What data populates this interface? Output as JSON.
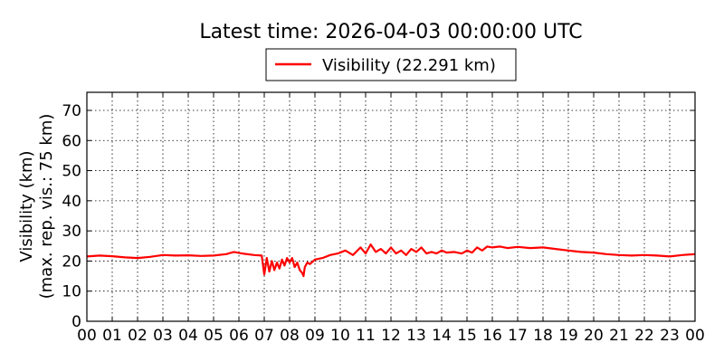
{
  "chart_data": {
    "type": "line",
    "title": "Latest time: 2026-04-03 00:00:00 UTC",
    "ylabel_lines": [
      "Visibility (km)",
      "(max. rep. vis.: 75 km)"
    ],
    "xlabel": "",
    "xlim": [
      0,
      24
    ],
    "ylim": [
      0,
      76
    ],
    "x_tick_labels": [
      "00",
      "01",
      "02",
      "03",
      "04",
      "05",
      "06",
      "07",
      "08",
      "09",
      "10",
      "11",
      "12",
      "13",
      "14",
      "15",
      "16",
      "17",
      "18",
      "19",
      "20",
      "21",
      "22",
      "23",
      "00"
    ],
    "y_ticks": [
      0,
      10,
      20,
      30,
      40,
      50,
      60,
      70
    ],
    "grid": true,
    "legend_position": "top-center",
    "series": [
      {
        "name": "Visibility (22.291 km)",
        "color": "#ff0000",
        "x": [
          0,
          0.5,
          1.0,
          1.5,
          2.0,
          2.5,
          3.0,
          3.5,
          4.0,
          4.5,
          5.0,
          5.5,
          5.8,
          6.2,
          6.6,
          6.9,
          7.0,
          7.1,
          7.2,
          7.3,
          7.4,
          7.5,
          7.6,
          7.7,
          7.8,
          7.9,
          8.0,
          8.1,
          8.2,
          8.3,
          8.4,
          8.5,
          8.55,
          8.6,
          8.7,
          8.8,
          9.0,
          9.3,
          9.6,
          9.9,
          10.2,
          10.5,
          10.8,
          11.0,
          11.2,
          11.4,
          11.6,
          11.8,
          12.0,
          12.2,
          12.4,
          12.6,
          12.8,
          13.0,
          13.2,
          13.4,
          13.6,
          13.8,
          14.0,
          14.2,
          14.5,
          14.8,
          15.0,
          15.2,
          15.4,
          15.6,
          15.8,
          16.0,
          16.3,
          16.6,
          17.0,
          17.5,
          18.0,
          18.5,
          19.0,
          19.5,
          20.0,
          20.5,
          21.0,
          21.5,
          22.0,
          22.5,
          23.0,
          23.5,
          24.0
        ],
        "values": [
          21.5,
          21.8,
          21.6,
          21.2,
          21.0,
          21.4,
          22.0,
          21.8,
          21.9,
          21.7,
          21.8,
          22.3,
          23.0,
          22.4,
          22.0,
          21.8,
          15.5,
          21.0,
          16.5,
          20.0,
          17.0,
          19.5,
          17.5,
          20.5,
          18.5,
          21.0,
          19.5,
          21.0,
          18.0,
          19.5,
          17.0,
          16.0,
          15.0,
          18.0,
          19.5,
          19.0,
          20.5,
          21.0,
          22.0,
          22.5,
          23.5,
          22.0,
          24.5,
          22.5,
          25.5,
          23.0,
          24.0,
          22.5,
          24.5,
          22.5,
          23.5,
          22.0,
          24.0,
          23.0,
          24.5,
          22.5,
          23.0,
          22.5,
          23.5,
          22.8,
          23.0,
          22.5,
          23.5,
          22.8,
          24.5,
          23.5,
          24.8,
          24.5,
          24.8,
          24.3,
          24.7,
          24.3,
          24.5,
          24.0,
          23.5,
          23.0,
          22.8,
          22.3,
          22.0,
          21.8,
          22.0,
          21.8,
          21.5,
          22.0,
          22.291
        ]
      }
    ]
  }
}
